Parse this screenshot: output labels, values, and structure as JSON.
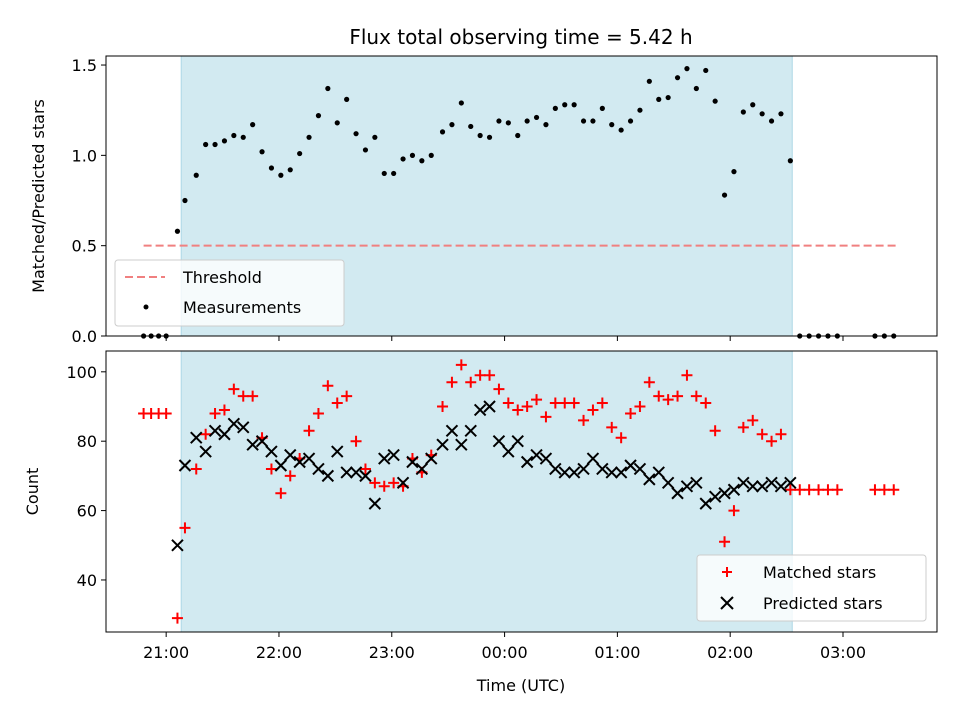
{
  "chart_data": [
    {
      "type": "scatter",
      "title": "Flux total observing time = 5.42 h",
      "ylabel": "Matched/Predicted stars",
      "xlabel": "",
      "xlim": [
        "20:28",
        "03:50"
      ],
      "ylim": [
        0,
        1.55
      ],
      "yticks": [
        "0.0",
        "0.5",
        "1.0",
        "1.5"
      ],
      "xticks": [
        "21:00",
        "22:00",
        "23:00",
        "00:00",
        "01:00",
        "02:00",
        "03:00"
      ],
      "observing_window": [
        "21:08",
        "02:33"
      ],
      "colors": {
        "window": "#add8e6",
        "threshold": "#f08080",
        "measurements": "#000000"
      },
      "legend": {
        "position": "lower-left",
        "entries": [
          "Threshold",
          "Measurements"
        ]
      },
      "threshold": {
        "name": "Threshold",
        "value": 0.5,
        "x_start": "20:48",
        "x_end": "03:30"
      },
      "series": [
        {
          "name": "Measurements",
          "points": [
            [
              "20:48",
              0.0
            ],
            [
              "20:52",
              0.0
            ],
            [
              "20:56",
              0.0
            ],
            [
              "21:00",
              0.0
            ],
            [
              "21:06",
              0.58
            ],
            [
              "21:10",
              0.75
            ],
            [
              "21:16",
              0.89
            ],
            [
              "21:21",
              1.06
            ],
            [
              "21:26",
              1.06
            ],
            [
              "21:31",
              1.08
            ],
            [
              "21:36",
              1.11
            ],
            [
              "21:41",
              1.1
            ],
            [
              "21:46",
              1.17
            ],
            [
              "21:51",
              1.02
            ],
            [
              "21:56",
              0.93
            ],
            [
              "22:01",
              0.89
            ],
            [
              "22:06",
              0.92
            ],
            [
              "22:11",
              1.01
            ],
            [
              "22:16",
              1.1
            ],
            [
              "22:21",
              1.22
            ],
            [
              "22:26",
              1.37
            ],
            [
              "22:31",
              1.18
            ],
            [
              "22:36",
              1.31
            ],
            [
              "22:41",
              1.12
            ],
            [
              "22:46",
              1.03
            ],
            [
              "22:51",
              1.1
            ],
            [
              "22:56",
              0.9
            ],
            [
              "23:01",
              0.9
            ],
            [
              "23:06",
              0.98
            ],
            [
              "23:11",
              1.0
            ],
            [
              "23:16",
              0.97
            ],
            [
              "23:21",
              1.0
            ],
            [
              "23:27",
              1.13
            ],
            [
              "23:32",
              1.17
            ],
            [
              "23:37",
              1.29
            ],
            [
              "23:42",
              1.16
            ],
            [
              "23:47",
              1.11
            ],
            [
              "23:52",
              1.1
            ],
            [
              "23:57",
              1.19
            ],
            [
              "00:02",
              1.18
            ],
            [
              "00:07",
              1.11
            ],
            [
              "00:12",
              1.19
            ],
            [
              "00:17",
              1.21
            ],
            [
              "00:22",
              1.17
            ],
            [
              "00:27",
              1.26
            ],
            [
              "00:32",
              1.28
            ],
            [
              "00:37",
              1.28
            ],
            [
              "00:42",
              1.19
            ],
            [
              "00:47",
              1.19
            ],
            [
              "00:52",
              1.26
            ],
            [
              "00:57",
              1.17
            ],
            [
              "01:02",
              1.14
            ],
            [
              "01:07",
              1.19
            ],
            [
              "01:12",
              1.25
            ],
            [
              "01:17",
              1.41
            ],
            [
              "01:22",
              1.31
            ],
            [
              "01:27",
              1.32
            ],
            [
              "01:32",
              1.43
            ],
            [
              "01:37",
              1.48
            ],
            [
              "01:42",
              1.37
            ],
            [
              "01:47",
              1.47
            ],
            [
              "01:52",
              1.3
            ],
            [
              "01:57",
              0.78
            ],
            [
              "02:02",
              0.91
            ],
            [
              "02:07",
              1.24
            ],
            [
              "02:12",
              1.28
            ],
            [
              "02:17",
              1.23
            ],
            [
              "02:22",
              1.19
            ],
            [
              "02:27",
              1.23
            ],
            [
              "02:32",
              0.97
            ],
            [
              "02:37",
              0.0
            ],
            [
              "02:42",
              0.0
            ],
            [
              "02:47",
              0.0
            ],
            [
              "02:52",
              0.0
            ],
            [
              "02:57",
              0.0
            ],
            [
              "03:17",
              0.0
            ],
            [
              "03:22",
              0.0
            ],
            [
              "03:27",
              0.0
            ]
          ]
        }
      ]
    },
    {
      "type": "scatter",
      "title": "",
      "xlabel": "Time (UTC)",
      "ylabel": "Count",
      "xlim": [
        "20:28",
        "03:50"
      ],
      "ylim": [
        25,
        106
      ],
      "yticks": [
        "40",
        "60",
        "80",
        "100"
      ],
      "xticks": [
        "21:00",
        "22:00",
        "23:00",
        "00:00",
        "01:00",
        "02:00",
        "03:00"
      ],
      "observing_window": [
        "21:08",
        "02:33"
      ],
      "colors": {
        "matched": "#ff0000",
        "predicted": "#000000",
        "window": "#add8e6"
      },
      "legend": {
        "position": "lower-right",
        "entries": [
          "Matched stars",
          "Predicted stars"
        ]
      },
      "series": [
        {
          "name": "Matched stars",
          "points": [
            [
              "20:48",
              88
            ],
            [
              "20:52",
              88
            ],
            [
              "20:56",
              88
            ],
            [
              "21:00",
              88
            ],
            [
              "21:06",
              29
            ],
            [
              "21:10",
              55
            ],
            [
              "21:16",
              72
            ],
            [
              "21:21",
              82
            ],
            [
              "21:26",
              88
            ],
            [
              "21:31",
              89
            ],
            [
              "21:36",
              95
            ],
            [
              "21:41",
              93
            ],
            [
              "21:46",
              93
            ],
            [
              "21:51",
              81
            ],
            [
              "21:56",
              72
            ],
            [
              "22:01",
              65
            ],
            [
              "22:06",
              70
            ],
            [
              "22:11",
              75
            ],
            [
              "22:16",
              83
            ],
            [
              "22:21",
              88
            ],
            [
              "22:26",
              96
            ],
            [
              "22:31",
              91
            ],
            [
              "22:36",
              93
            ],
            [
              "22:41",
              80
            ],
            [
              "22:46",
              72
            ],
            [
              "22:51",
              68
            ],
            [
              "22:56",
              67
            ],
            [
              "23:01",
              68
            ],
            [
              "23:06",
              67
            ],
            [
              "23:11",
              75
            ],
            [
              "23:16",
              71
            ],
            [
              "23:21",
              76
            ],
            [
              "23:27",
              90
            ],
            [
              "23:32",
              97
            ],
            [
              "23:37",
              102
            ],
            [
              "23:42",
              97
            ],
            [
              "23:47",
              99
            ],
            [
              "23:52",
              99
            ],
            [
              "23:57",
              95
            ],
            [
              "00:02",
              91
            ],
            [
              "00:07",
              89
            ],
            [
              "00:12",
              90
            ],
            [
              "00:17",
              92
            ],
            [
              "00:22",
              87
            ],
            [
              "00:27",
              91
            ],
            [
              "00:32",
              91
            ],
            [
              "00:37",
              91
            ],
            [
              "00:42",
              86
            ],
            [
              "00:47",
              89
            ],
            [
              "00:52",
              91
            ],
            [
              "00:57",
              84
            ],
            [
              "01:02",
              81
            ],
            [
              "01:07",
              88
            ],
            [
              "01:12",
              90
            ],
            [
              "01:17",
              97
            ],
            [
              "01:22",
              93
            ],
            [
              "01:27",
              92
            ],
            [
              "01:32",
              93
            ],
            [
              "01:37",
              99
            ],
            [
              "01:42",
              93
            ],
            [
              "01:47",
              91
            ],
            [
              "01:52",
              83
            ],
            [
              "01:57",
              51
            ],
            [
              "02:02",
              60
            ],
            [
              "02:07",
              84
            ],
            [
              "02:12",
              86
            ],
            [
              "02:17",
              82
            ],
            [
              "02:22",
              80
            ],
            [
              "02:27",
              82
            ],
            [
              "02:32",
              66
            ],
            [
              "02:37",
              66
            ],
            [
              "02:42",
              66
            ],
            [
              "02:47",
              66
            ],
            [
              "02:52",
              66
            ],
            [
              "02:57",
              66
            ],
            [
              "03:17",
              66
            ],
            [
              "03:22",
              66
            ],
            [
              "03:27",
              66
            ]
          ]
        },
        {
          "name": "Predicted stars",
          "points": [
            [
              "21:06",
              50
            ],
            [
              "21:10",
              73
            ],
            [
              "21:16",
              81
            ],
            [
              "21:21",
              77
            ],
            [
              "21:26",
              83
            ],
            [
              "21:31",
              82
            ],
            [
              "21:36",
              85
            ],
            [
              "21:41",
              84
            ],
            [
              "21:46",
              79
            ],
            [
              "21:51",
              80
            ],
            [
              "21:56",
              77
            ],
            [
              "22:01",
              73
            ],
            [
              "22:06",
              76
            ],
            [
              "22:11",
              74
            ],
            [
              "22:16",
              75
            ],
            [
              "22:21",
              72
            ],
            [
              "22:26",
              70
            ],
            [
              "22:31",
              77
            ],
            [
              "22:36",
              71
            ],
            [
              "22:41",
              71
            ],
            [
              "22:46",
              70
            ],
            [
              "22:51",
              62
            ],
            [
              "22:56",
              75
            ],
            [
              "23:01",
              76
            ],
            [
              "23:06",
              68
            ],
            [
              "23:11",
              74
            ],
            [
              "23:16",
              72
            ],
            [
              "23:21",
              75
            ],
            [
              "23:27",
              79
            ],
            [
              "23:32",
              83
            ],
            [
              "23:37",
              79
            ],
            [
              "23:42",
              83
            ],
            [
              "23:47",
              89
            ],
            [
              "23:52",
              90
            ],
            [
              "23:57",
              80
            ],
            [
              "00:02",
              77
            ],
            [
              "00:07",
              80
            ],
            [
              "00:12",
              74
            ],
            [
              "00:17",
              76
            ],
            [
              "00:22",
              75
            ],
            [
              "00:27",
              72
            ],
            [
              "00:32",
              71
            ],
            [
              "00:37",
              71
            ],
            [
              "00:42",
              72
            ],
            [
              "00:47",
              75
            ],
            [
              "00:52",
              72
            ],
            [
              "00:57",
              71
            ],
            [
              "01:02",
              71
            ],
            [
              "01:07",
              73
            ],
            [
              "01:12",
              72
            ],
            [
              "01:17",
              69
            ],
            [
              "01:22",
              71
            ],
            [
              "01:27",
              68
            ],
            [
              "01:32",
              65
            ],
            [
              "01:37",
              67
            ],
            [
              "01:42",
              68
            ],
            [
              "01:47",
              62
            ],
            [
              "01:52",
              64
            ],
            [
              "01:57",
              65
            ],
            [
              "02:02",
              66
            ],
            [
              "02:07",
              68
            ],
            [
              "02:12",
              67
            ],
            [
              "02:17",
              67
            ],
            [
              "02:22",
              68
            ],
            [
              "02:27",
              67
            ],
            [
              "02:32",
              68
            ]
          ]
        }
      ]
    }
  ]
}
